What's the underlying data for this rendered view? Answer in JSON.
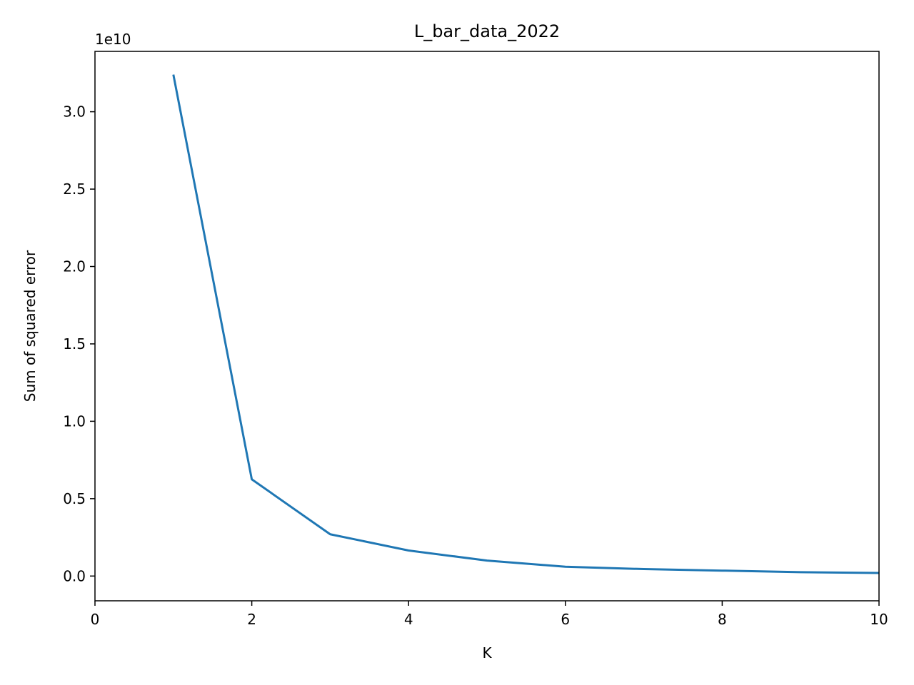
{
  "chart_data": {
    "type": "line",
    "title": "L_bar_data_2022",
    "xlabel": "K",
    "ylabel": "Sum of squared error",
    "y_scale_label": "1e10",
    "xlim": [
      0,
      10
    ],
    "ylim": [
      -0.16,
      3.39
    ],
    "xticks": [
      0,
      2,
      4,
      6,
      8,
      10
    ],
    "xtick_labels": [
      "0",
      "2",
      "4",
      "6",
      "8",
      "10"
    ],
    "yticks": [
      0.0,
      0.5,
      1.0,
      1.5,
      2.0,
      2.5,
      3.0
    ],
    "ytick_labels": [
      "0.0",
      "0.5",
      "1.0",
      "1.5",
      "2.0",
      "2.5",
      "3.0"
    ],
    "grid": false,
    "series": [
      {
        "color": "#1f77b4",
        "x": [
          1,
          2,
          3,
          4,
          5,
          6,
          7,
          8,
          9,
          10
        ],
        "y": [
          3.24,
          0.625,
          0.27,
          0.165,
          0.1,
          0.06,
          0.045,
          0.035,
          0.025,
          0.02
        ]
      }
    ]
  }
}
